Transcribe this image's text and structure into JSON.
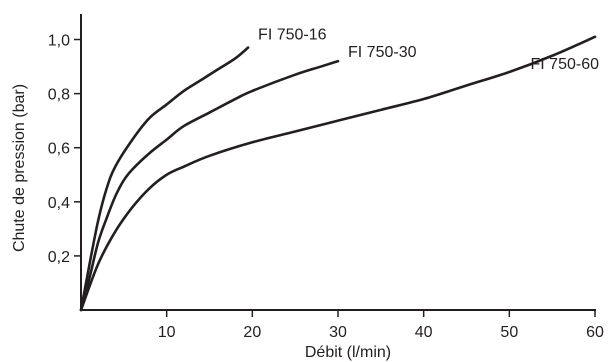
{
  "chart_data": {
    "type": "line",
    "xlabel": "Débit (l/min)",
    "ylabel": "Chute de pression (bar)",
    "xlim": [
      0,
      60
    ],
    "ylim": [
      0,
      1.05
    ],
    "x_ticks": [
      10,
      20,
      30,
      40,
      50,
      60
    ],
    "x_tick_labels": [
      "10",
      "20",
      "30",
      "40",
      "50",
      "60"
    ],
    "y_ticks": [
      0.2,
      0.4,
      0.6,
      0.8,
      1.0
    ],
    "y_tick_labels": [
      "0,2",
      "0,4",
      "0,6",
      "0,8",
      "1,0"
    ],
    "grid": false,
    "legend": "none",
    "series": [
      {
        "name": "FI 750-16",
        "points": [
          [
            0,
            0
          ],
          [
            1,
            0.17
          ],
          [
            2,
            0.33
          ],
          [
            3,
            0.45
          ],
          [
            4,
            0.53
          ],
          [
            6,
            0.63
          ],
          [
            8,
            0.71
          ],
          [
            10,
            0.76
          ],
          [
            12,
            0.81
          ],
          [
            14,
            0.85
          ],
          [
            16,
            0.89
          ],
          [
            18,
            0.93
          ],
          [
            19.5,
            0.97
          ]
        ]
      },
      {
        "name": "FI 750-30",
        "points": [
          [
            0,
            0
          ],
          [
            1,
            0.12
          ],
          [
            2,
            0.25
          ],
          [
            3,
            0.34
          ],
          [
            4,
            0.42
          ],
          [
            5,
            0.48
          ],
          [
            6,
            0.52
          ],
          [
            8,
            0.58
          ],
          [
            10,
            0.63
          ],
          [
            12,
            0.68
          ],
          [
            15,
            0.73
          ],
          [
            18,
            0.78
          ],
          [
            20,
            0.81
          ],
          [
            25,
            0.87
          ],
          [
            28,
            0.9
          ],
          [
            30,
            0.92
          ]
        ]
      },
      {
        "name": "FI 750-60",
        "points": [
          [
            0,
            0
          ],
          [
            2,
            0.17
          ],
          [
            4,
            0.29
          ],
          [
            6,
            0.38
          ],
          [
            8,
            0.45
          ],
          [
            10,
            0.5
          ],
          [
            12,
            0.53
          ],
          [
            15,
            0.57
          ],
          [
            20,
            0.62
          ],
          [
            25,
            0.66
          ],
          [
            30,
            0.7
          ],
          [
            35,
            0.74
          ],
          [
            40,
            0.78
          ],
          [
            45,
            0.83
          ],
          [
            50,
            0.88
          ],
          [
            55,
            0.94
          ],
          [
            60,
            1.01
          ]
        ]
      }
    ]
  }
}
